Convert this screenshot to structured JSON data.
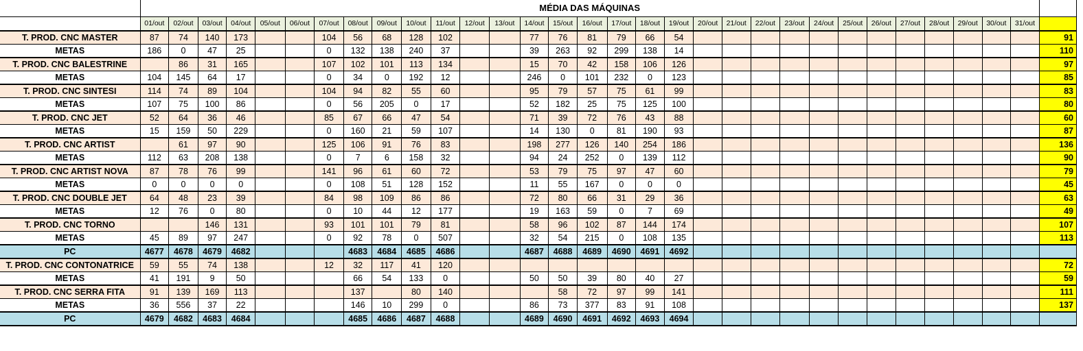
{
  "title": "MÉDIA DAS MÁQUINAS",
  "days": [
    "01/out",
    "02/out",
    "03/out",
    "04/out",
    "05/out",
    "06/out",
    "07/out",
    "08/out",
    "09/out",
    "10/out",
    "11/out",
    "12/out",
    "13/out",
    "14/out",
    "15/out",
    "16/out",
    "17/out",
    "18/out",
    "19/out",
    "20/out",
    "21/out",
    "22/out",
    "23/out",
    "24/out",
    "25/out",
    "26/out",
    "27/out",
    "28/out",
    "29/out",
    "30/out",
    "31/out"
  ],
  "rows": [
    {
      "type": "prod",
      "label": "T. PROD. CNC MASTER",
      "values": [
        "87",
        "74",
        "140",
        "173",
        "",
        "",
        "104",
        "56",
        "68",
        "128",
        "102",
        "",
        "",
        "77",
        "76",
        "81",
        "79",
        "66",
        "54",
        "",
        "",
        "",
        "",
        "",
        "",
        "",
        "",
        "",
        "",
        "",
        ""
      ],
      "avg": "91"
    },
    {
      "type": "metas",
      "label": "METAS",
      "values": [
        "186",
        "0",
        "47",
        "25",
        "",
        "",
        "0",
        "132",
        "138",
        "240",
        "37",
        "",
        "",
        "39",
        "263",
        "92",
        "299",
        "138",
        "14",
        "",
        "",
        "",
        "",
        "",
        "",
        "",
        "",
        "",
        "",
        "",
        ""
      ],
      "avg": "110"
    },
    {
      "type": "prod",
      "label": "T. PROD. CNC BALESTRINE",
      "values": [
        "",
        "86",
        "31",
        "165",
        "",
        "",
        "107",
        "102",
        "101",
        "113",
        "134",
        "",
        "",
        "15",
        "70",
        "42",
        "158",
        "106",
        "126",
        "",
        "",
        "",
        "",
        "",
        "",
        "",
        "",
        "",
        "",
        "",
        ""
      ],
      "avg": "97"
    },
    {
      "type": "metas",
      "label": "METAS",
      "values": [
        "104",
        "145",
        "64",
        "17",
        "",
        "",
        "0",
        "34",
        "0",
        "192",
        "12",
        "",
        "",
        "246",
        "0",
        "101",
        "232",
        "0",
        "123",
        "",
        "",
        "",
        "",
        "",
        "",
        "",
        "",
        "",
        "",
        "",
        ""
      ],
      "avg": "85"
    },
    {
      "type": "prod",
      "label": "T. PROD. CNC SINTESI",
      "values": [
        "114",
        "74",
        "89",
        "104",
        "",
        "",
        "104",
        "94",
        "82",
        "55",
        "60",
        "",
        "",
        "95",
        "79",
        "57",
        "75",
        "61",
        "99",
        "",
        "",
        "",
        "",
        "",
        "",
        "",
        "",
        "",
        "",
        "",
        ""
      ],
      "avg": "83"
    },
    {
      "type": "metas",
      "label": "METAS",
      "values": [
        "107",
        "75",
        "100",
        "86",
        "",
        "",
        "0",
        "56",
        "205",
        "0",
        "17",
        "",
        "",
        "52",
        "182",
        "25",
        "75",
        "125",
        "100",
        "",
        "",
        "",
        "",
        "",
        "",
        "",
        "",
        "",
        "",
        "",
        ""
      ],
      "avg": "80"
    },
    {
      "type": "prod",
      "label": "T. PROD. CNC JET",
      "values": [
        "52",
        "64",
        "36",
        "46",
        "",
        "",
        "85",
        "67",
        "66",
        "47",
        "54",
        "",
        "",
        "71",
        "39",
        "72",
        "76",
        "43",
        "88",
        "",
        "",
        "",
        "",
        "",
        "",
        "",
        "",
        "",
        "",
        "",
        ""
      ],
      "avg": "60"
    },
    {
      "type": "metas",
      "label": "METAS",
      "values": [
        "15",
        "159",
        "50",
        "229",
        "",
        "",
        "0",
        "160",
        "21",
        "59",
        "107",
        "",
        "",
        "14",
        "130",
        "0",
        "81",
        "190",
        "93",
        "",
        "",
        "",
        "",
        "",
        "",
        "",
        "",
        "",
        "",
        "",
        ""
      ],
      "avg": "87"
    },
    {
      "type": "prod",
      "label": "T. PROD. CNC ARTIST",
      "values": [
        "",
        "61",
        "97",
        "90",
        "",
        "",
        "125",
        "106",
        "91",
        "76",
        "83",
        "",
        "",
        "198",
        "277",
        "126",
        "140",
        "254",
        "186",
        "",
        "",
        "",
        "",
        "",
        "",
        "",
        "",
        "",
        "",
        "",
        ""
      ],
      "avg": "136"
    },
    {
      "type": "metas",
      "label": "METAS",
      "values": [
        "112",
        "63",
        "208",
        "138",
        "",
        "",
        "0",
        "7",
        "6",
        "158",
        "32",
        "",
        "",
        "94",
        "24",
        "252",
        "0",
        "139",
        "112",
        "",
        "",
        "",
        "",
        "",
        "",
        "",
        "",
        "",
        "",
        "",
        ""
      ],
      "avg": "90"
    },
    {
      "type": "prod",
      "label": "T. PROD. CNC ARTIST NOVA",
      "values": [
        "87",
        "78",
        "76",
        "99",
        "",
        "",
        "141",
        "96",
        "61",
        "60",
        "72",
        "",
        "",
        "53",
        "79",
        "75",
        "97",
        "47",
        "60",
        "",
        "",
        "",
        "",
        "",
        "",
        "",
        "",
        "",
        "",
        "",
        ""
      ],
      "avg": "79"
    },
    {
      "type": "metas",
      "label": "METAS",
      "values": [
        "0",
        "0",
        "0",
        "0",
        "",
        "",
        "0",
        "108",
        "51",
        "128",
        "152",
        "",
        "",
        "11",
        "55",
        "167",
        "0",
        "0",
        "0",
        "",
        "",
        "",
        "",
        "",
        "",
        "",
        "",
        "",
        "",
        "",
        ""
      ],
      "avg": "45"
    },
    {
      "type": "prod",
      "label": "T. PROD. CNC DOUBLE JET",
      "values": [
        "64",
        "48",
        "23",
        "39",
        "",
        "",
        "84",
        "98",
        "109",
        "86",
        "86",
        "",
        "",
        "72",
        "80",
        "66",
        "31",
        "29",
        "36",
        "",
        "",
        "",
        "",
        "",
        "",
        "",
        "",
        "",
        "",
        "",
        ""
      ],
      "avg": "63"
    },
    {
      "type": "metas",
      "label": "METAS",
      "values": [
        "12",
        "76",
        "0",
        "80",
        "",
        "",
        "0",
        "10",
        "44",
        "12",
        "177",
        "",
        "",
        "19",
        "163",
        "59",
        "0",
        "7",
        "69",
        "",
        "",
        "",
        "",
        "",
        "",
        "",
        "",
        "",
        "",
        "",
        ""
      ],
      "avg": "49"
    },
    {
      "type": "prod",
      "label": "T. PROD. CNC TORNO",
      "values": [
        "",
        "",
        "146",
        "131",
        "",
        "",
        "93",
        "101",
        "101",
        "79",
        "81",
        "",
        "",
        "58",
        "96",
        "102",
        "87",
        "144",
        "174",
        "",
        "",
        "",
        "",
        "",
        "",
        "",
        "",
        "",
        "",
        "",
        ""
      ],
      "avg": "107"
    },
    {
      "type": "metas",
      "label": "METAS",
      "values": [
        "45",
        "89",
        "97",
        "247",
        "",
        "",
        "0",
        "92",
        "78",
        "0",
        "507",
        "",
        "",
        "32",
        "54",
        "215",
        "0",
        "108",
        "135",
        "",
        "",
        "",
        "",
        "",
        "",
        "",
        "",
        "",
        "",
        "",
        ""
      ],
      "avg": "113"
    },
    {
      "type": "pc",
      "label": "PC",
      "values": [
        "4677",
        "4678",
        "4679",
        "4682",
        "",
        "",
        "",
        "4683",
        "4684",
        "4685",
        "4686",
        "",
        "",
        "4687",
        "4688",
        "4689",
        "4690",
        "4691",
        "4692",
        "",
        "",
        "",
        "",
        "",
        "",
        "",
        "",
        "",
        "",
        "",
        ""
      ],
      "avg": ""
    },
    {
      "type": "prod",
      "label": "T. PROD. CNC CONTONATRICE",
      "values": [
        "59",
        "55",
        "74",
        "138",
        "",
        "",
        "12",
        "32",
        "117",
        "41",
        "120",
        "",
        "",
        "",
        "",
        "",
        "",
        "",
        "",
        "",
        "",
        "",
        "",
        "",
        "",
        "",
        "",
        "",
        "",
        "",
        ""
      ],
      "avg": "72"
    },
    {
      "type": "metas",
      "label": "METAS",
      "values": [
        "41",
        "191",
        "9",
        "50",
        "",
        "",
        "",
        "66",
        "54",
        "133",
        "0",
        "",
        "",
        "50",
        "50",
        "39",
        "80",
        "40",
        "27",
        "",
        "",
        "",
        "",
        "",
        "",
        "",
        "",
        "",
        "",
        "",
        ""
      ],
      "avg": "59"
    },
    {
      "type": "prod",
      "label": "T. PROD. CNC SERRA FITA",
      "values": [
        "91",
        "139",
        "169",
        "113",
        "",
        "",
        "",
        "137",
        "",
        "80",
        "140",
        "",
        "",
        "",
        "58",
        "72",
        "97",
        "99",
        "141",
        "",
        "",
        "",
        "",
        "",
        "",
        "",
        "",
        "",
        "",
        "",
        ""
      ],
      "avg": "111"
    },
    {
      "type": "metas",
      "label": "METAS",
      "values": [
        "36",
        "556",
        "37",
        "22",
        "",
        "",
        "",
        "146",
        "10",
        "299",
        "0",
        "",
        "",
        "86",
        "73",
        "377",
        "83",
        "91",
        "108",
        "",
        "",
        "",
        "",
        "",
        "",
        "",
        "",
        "",
        "",
        "",
        ""
      ],
      "avg": "137"
    },
    {
      "type": "pc",
      "label": "PC",
      "values": [
        "4679",
        "4682",
        "4683",
        "4684",
        "",
        "",
        "",
        "4685",
        "4686",
        "4687",
        "4688",
        "",
        "",
        "4689",
        "4690",
        "4691",
        "4692",
        "4693",
        "4694",
        "",
        "",
        "",
        "",
        "",
        "",
        "",
        "",
        "",
        "",
        "",
        ""
      ],
      "avg": ""
    }
  ]
}
